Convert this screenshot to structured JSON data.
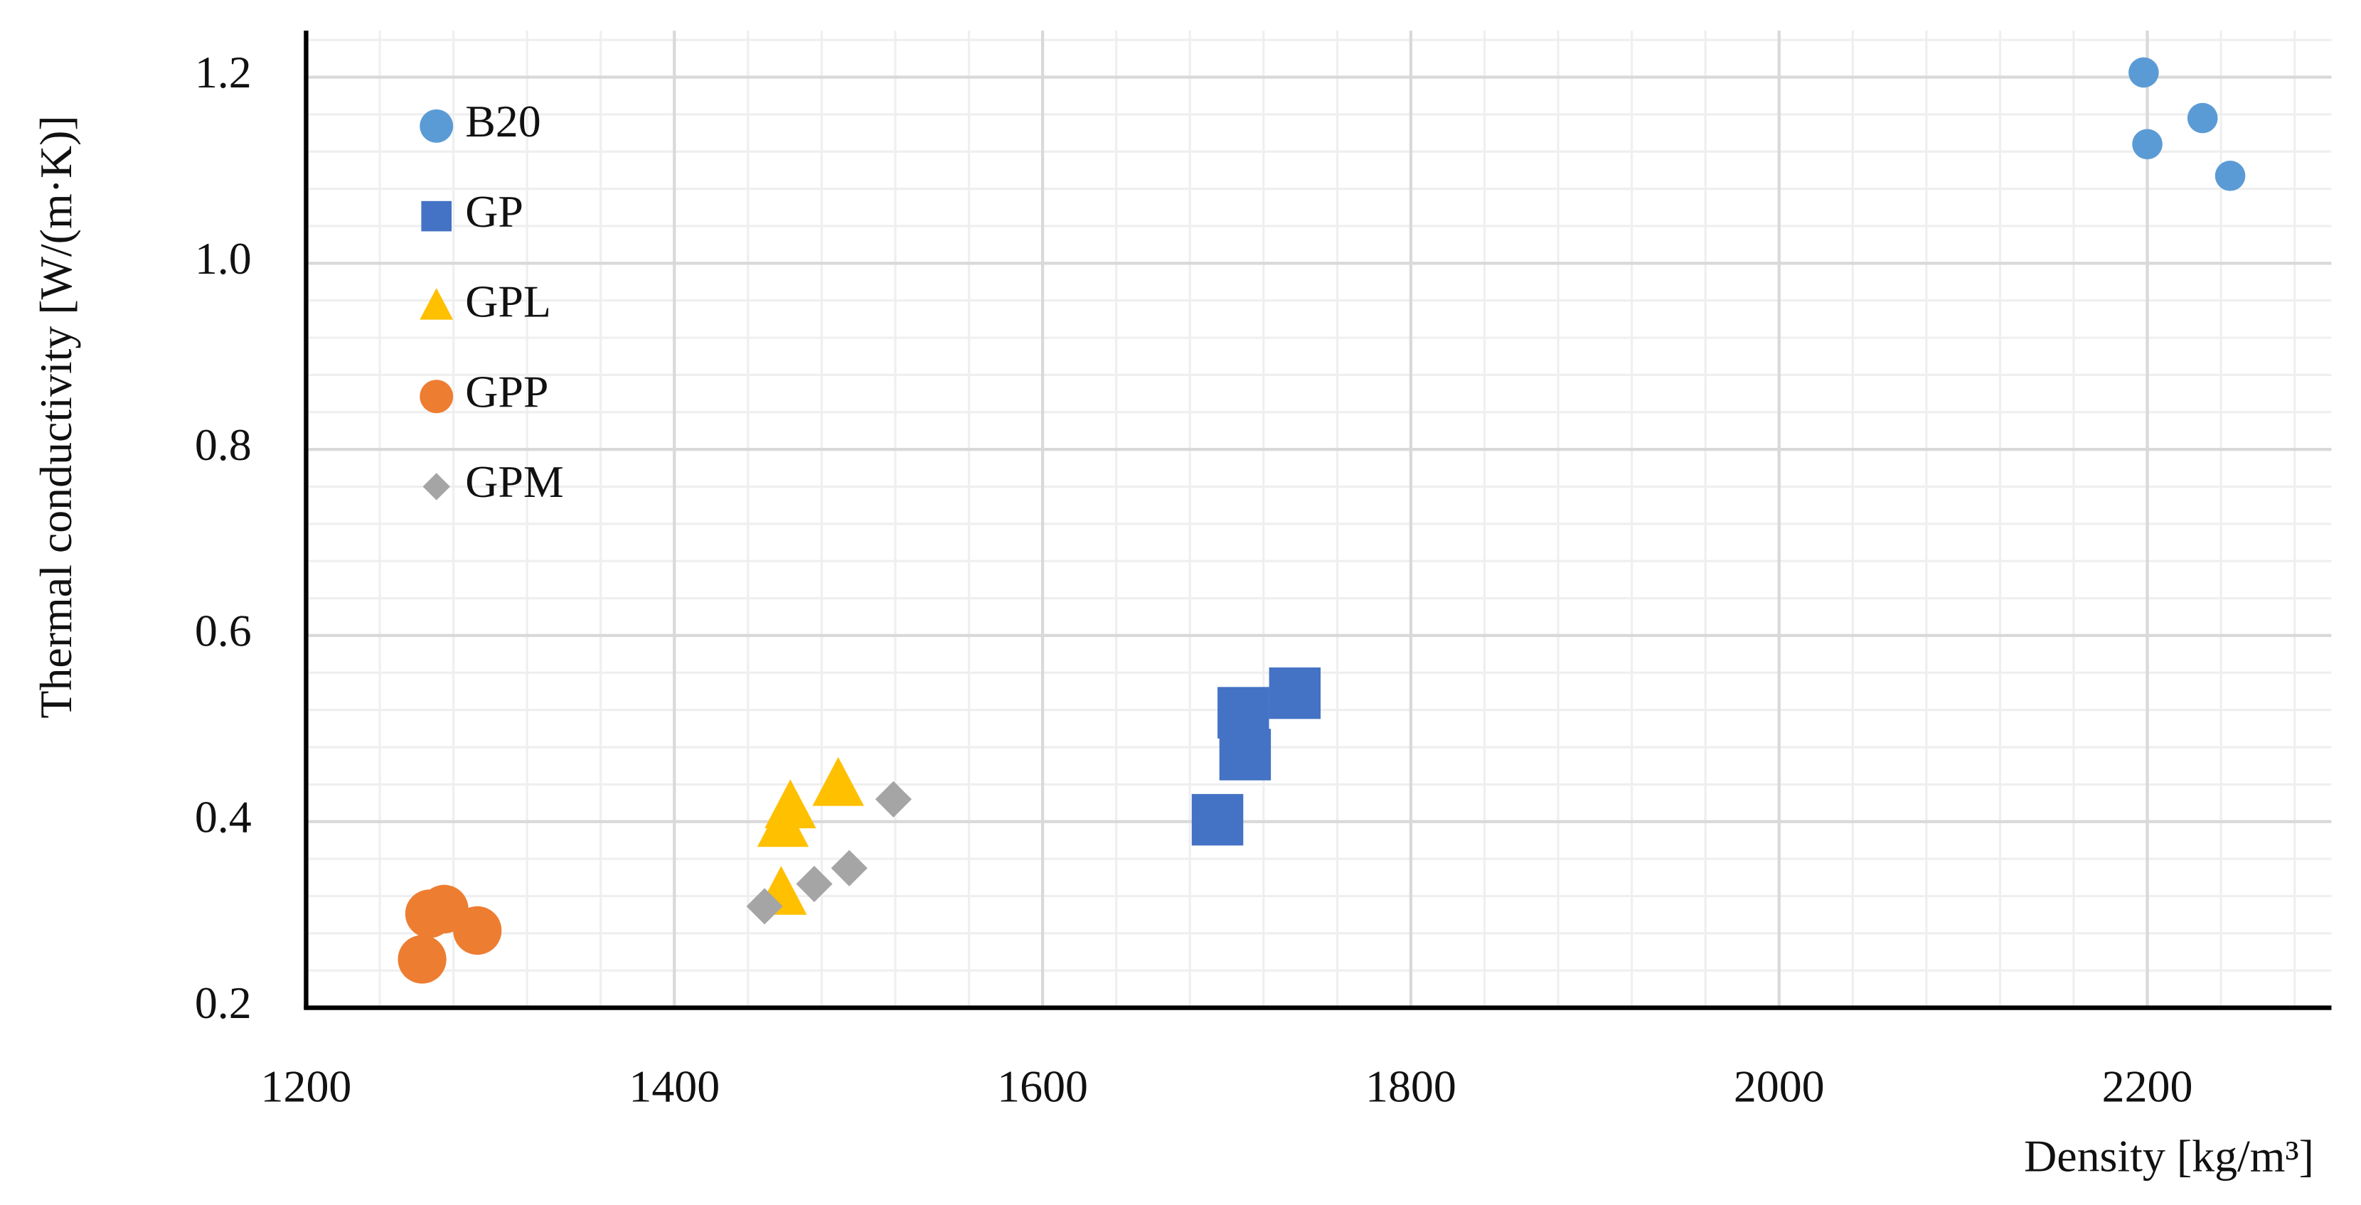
{
  "chart_data": {
    "type": "scatter",
    "x_label": "Density [kg/m³]",
    "y_label": "Thermal conductivity [W/(m·K)]",
    "xlim": [
      1200,
      2300
    ],
    "xticks": [
      1200,
      1400,
      1600,
      1800,
      2000,
      2200
    ],
    "ylim": [
      0.2,
      1.25
    ],
    "yticks": [
      0.2,
      0.4,
      0.6,
      0.8,
      {
        "value": 1,
        "label": "1.0"
      },
      1.2
    ],
    "grid": true,
    "legend": "upper left",
    "series": [
      {
        "name": "B20",
        "color": "#5b9bd5",
        "marker": "circle",
        "x": [
          2198,
          2230,
          2200,
          2245
        ],
        "values": [
          1.205,
          1.156,
          1.128,
          1.094
        ]
      },
      {
        "name": "GP",
        "color": "#4472c4",
        "marker": "square",
        "x": [
          1737,
          1709,
          1710,
          1695
        ],
        "values": [
          0.538,
          0.517,
          0.472,
          0.402
        ]
      },
      {
        "name": "GPL",
        "color": "#ffc000",
        "marker": "triangle",
        "x": [
          1489,
          1463,
          1459,
          1458
        ],
        "values": [
          0.439,
          0.415,
          0.395,
          0.322
        ]
      },
      {
        "name": "GPP",
        "color": "#ed7d31",
        "marker": "circle",
        "x": [
          1263,
          1267,
          1275,
          1293
        ],
        "values": [
          0.252,
          0.301,
          0.306,
          0.283
        ]
      },
      {
        "name": "GPM",
        "color": "#a5a5a5",
        "marker": "diamond",
        "x": [
          1519,
          1495,
          1476,
          1449
        ],
        "values": [
          0.424,
          0.35,
          0.333,
          0.309
        ]
      }
    ]
  }
}
